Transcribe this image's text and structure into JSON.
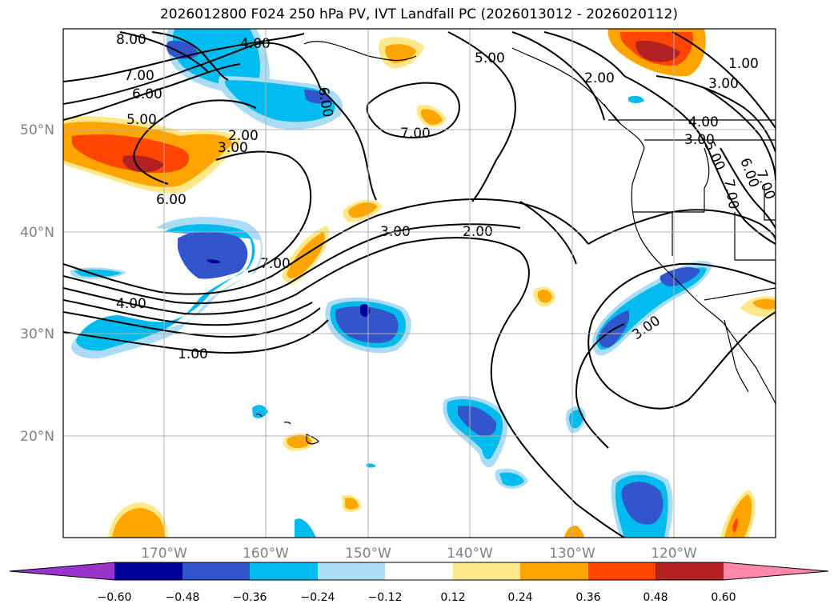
{
  "title": "2026012800 F024 250 hPa PV, IVT Landfall PC (2026013012 - 2026020112)",
  "map": {
    "lat_labels": [
      "50°N",
      "40°N",
      "30°N",
      "20°N"
    ],
    "lon_labels": [
      "170°W",
      "160°W",
      "150°W",
      "140°W",
      "130°W",
      "120°W"
    ],
    "contour_labels": [
      "8.00",
      "7.00",
      "6.00",
      "5.00",
      "4.00",
      "6.00",
      "2.00",
      "3.00",
      "6.00",
      "7.00",
      "3.00",
      "2.00",
      "7.00",
      "4.00",
      "1.00",
      "5.00",
      "7.00",
      "2.00",
      "1.00",
      "3.00",
      "4.00",
      "3.00",
      "5.00",
      "6.00",
      "7.00",
      "3.00"
    ]
  },
  "colorbar": {
    "ticks": [
      "−0.60",
      "−0.48",
      "−0.36",
      "−0.24",
      "−0.12",
      "0.12",
      "0.24",
      "0.36",
      "0.48",
      "0.60"
    ],
    "colors": [
      "#9933cc",
      "#000099",
      "#3355cc",
      "#00bbee",
      "#aaddf5",
      "#ffffff",
      "#ffe88a",
      "#ffa500",
      "#ff4500",
      "#b22222",
      "#ff88aa"
    ]
  }
}
